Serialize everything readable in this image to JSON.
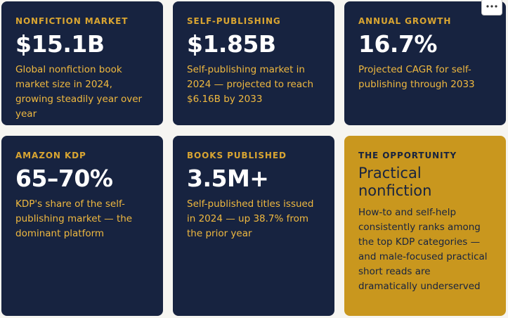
{
  "cards": [
    {
      "label": "NONFICTION MARKET",
      "value": "$15.1B",
      "description": "Global nonfiction book market size in 2024, growing steadily year over year"
    },
    {
      "label": "SELF-PUBLISHING",
      "value": "$1.85B",
      "description": "Self-publishing market in 2024 — projected to reach $6.16B by 2033"
    },
    {
      "label": "ANNUAL GROWTH",
      "value": "16.7%",
      "description": "Projected CAGR for self-publishing through 2033"
    },
    {
      "label": "AMAZON KDP",
      "value": "65–70%",
      "description": "KDP's share of the self-publishing market — the dominant platform"
    },
    {
      "label": "BOOKS PUBLISHED",
      "value": "3.5M+",
      "description": "Self-published titles issued in 2024 — up 38.7% from the prior year"
    },
    {
      "label": "THE OPPORTUNITY",
      "title": "Practical nonfiction",
      "description": "How-to and self-help consistently ranks among the top KDP categories — and male-focused practical short reads are dramatically underserved"
    }
  ]
}
